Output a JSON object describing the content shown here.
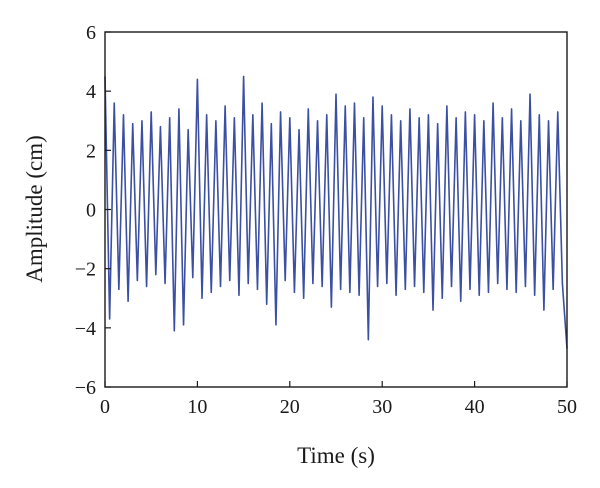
{
  "chart_data": {
    "type": "line",
    "title": "",
    "xlabel": "Time (s)",
    "ylabel": "Amplitude (cm)",
    "xlim": [
      0,
      50
    ],
    "ylim": [
      -6,
      6
    ],
    "x_ticks": [
      0,
      10,
      20,
      30,
      40,
      50
    ],
    "y_ticks": [
      -6,
      -4,
      -2,
      0,
      2,
      4,
      6
    ],
    "x_tick_labels": [
      "0",
      "10",
      "20",
      "30",
      "40",
      "50"
    ],
    "y_tick_labels": [
      "−6",
      "−4",
      "−2",
      "0",
      "2",
      "4",
      "6"
    ],
    "grid": false,
    "legend": "none",
    "series": [
      {
        "color": "#3b4fa3",
        "x": [
          0.0,
          0.5,
          1.0,
          1.5,
          2.0,
          2.5,
          3.0,
          3.5,
          4.0,
          4.5,
          5.0,
          5.5,
          6.0,
          6.5,
          7.0,
          7.5,
          8.0,
          8.5,
          9.0,
          9.5,
          10.0,
          10.5,
          11.0,
          11.5,
          12.0,
          12.5,
          13.0,
          13.5,
          14.0,
          14.5,
          15.0,
          15.5,
          16.0,
          16.5,
          17.0,
          17.5,
          18.0,
          18.5,
          19.0,
          19.5,
          20.0,
          20.5,
          21.0,
          21.5,
          22.0,
          22.5,
          23.0,
          23.5,
          24.0,
          24.5,
          25.0,
          25.5,
          26.0,
          26.5,
          27.0,
          27.5,
          28.0,
          28.5,
          29.0,
          29.5,
          30.0,
          30.5,
          31.0,
          31.5,
          32.0,
          32.5,
          33.0,
          33.5,
          34.0,
          34.5,
          35.0,
          35.5,
          36.0,
          36.5,
          37.0,
          37.5,
          38.0,
          38.5,
          39.0,
          39.5,
          40.0,
          40.5,
          41.0,
          41.5,
          42.0,
          42.5,
          43.0,
          43.5,
          44.0,
          44.5,
          45.0,
          45.5,
          46.0,
          46.5,
          47.0,
          47.5,
          48.0,
          48.5,
          49.0,
          49.5,
          50.0
        ],
        "y": [
          4.5,
          -3.7,
          3.6,
          -2.7,
          3.2,
          -3.1,
          2.9,
          -2.4,
          3.0,
          -2.6,
          3.3,
          -2.2,
          2.8,
          -2.5,
          3.1,
          -4.1,
          3.4,
          -3.9,
          2.7,
          -2.3,
          4.4,
          -3.0,
          3.2,
          -2.8,
          3.0,
          -2.6,
          3.5,
          -2.4,
          3.1,
          -2.9,
          4.5,
          -2.5,
          3.2,
          -2.7,
          3.6,
          -3.2,
          2.9,
          -3.9,
          3.3,
          -2.4,
          3.1,
          -2.8,
          2.7,
          -3.0,
          3.4,
          -2.5,
          3.0,
          -2.6,
          3.2,
          -3.3,
          3.9,
          -2.7,
          3.5,
          -2.8,
          3.6,
          -2.9,
          3.1,
          -4.4,
          3.8,
          -2.6,
          3.5,
          -2.5,
          3.2,
          -2.9,
          3.0,
          -2.7,
          3.4,
          -2.6,
          3.1,
          -2.8,
          3.2,
          -3.4,
          2.9,
          -3.0,
          3.5,
          -2.6,
          3.1,
          -3.1,
          3.3,
          -2.7,
          3.2,
          -2.9,
          3.0,
          -2.8,
          3.6,
          -2.5,
          3.1,
          -2.7,
          3.4,
          -2.8,
          3.0,
          -2.6,
          3.9,
          -2.9,
          3.2,
          -3.4,
          3.0,
          -2.7,
          3.3,
          -2.5,
          -4.7
        ]
      }
    ]
  }
}
